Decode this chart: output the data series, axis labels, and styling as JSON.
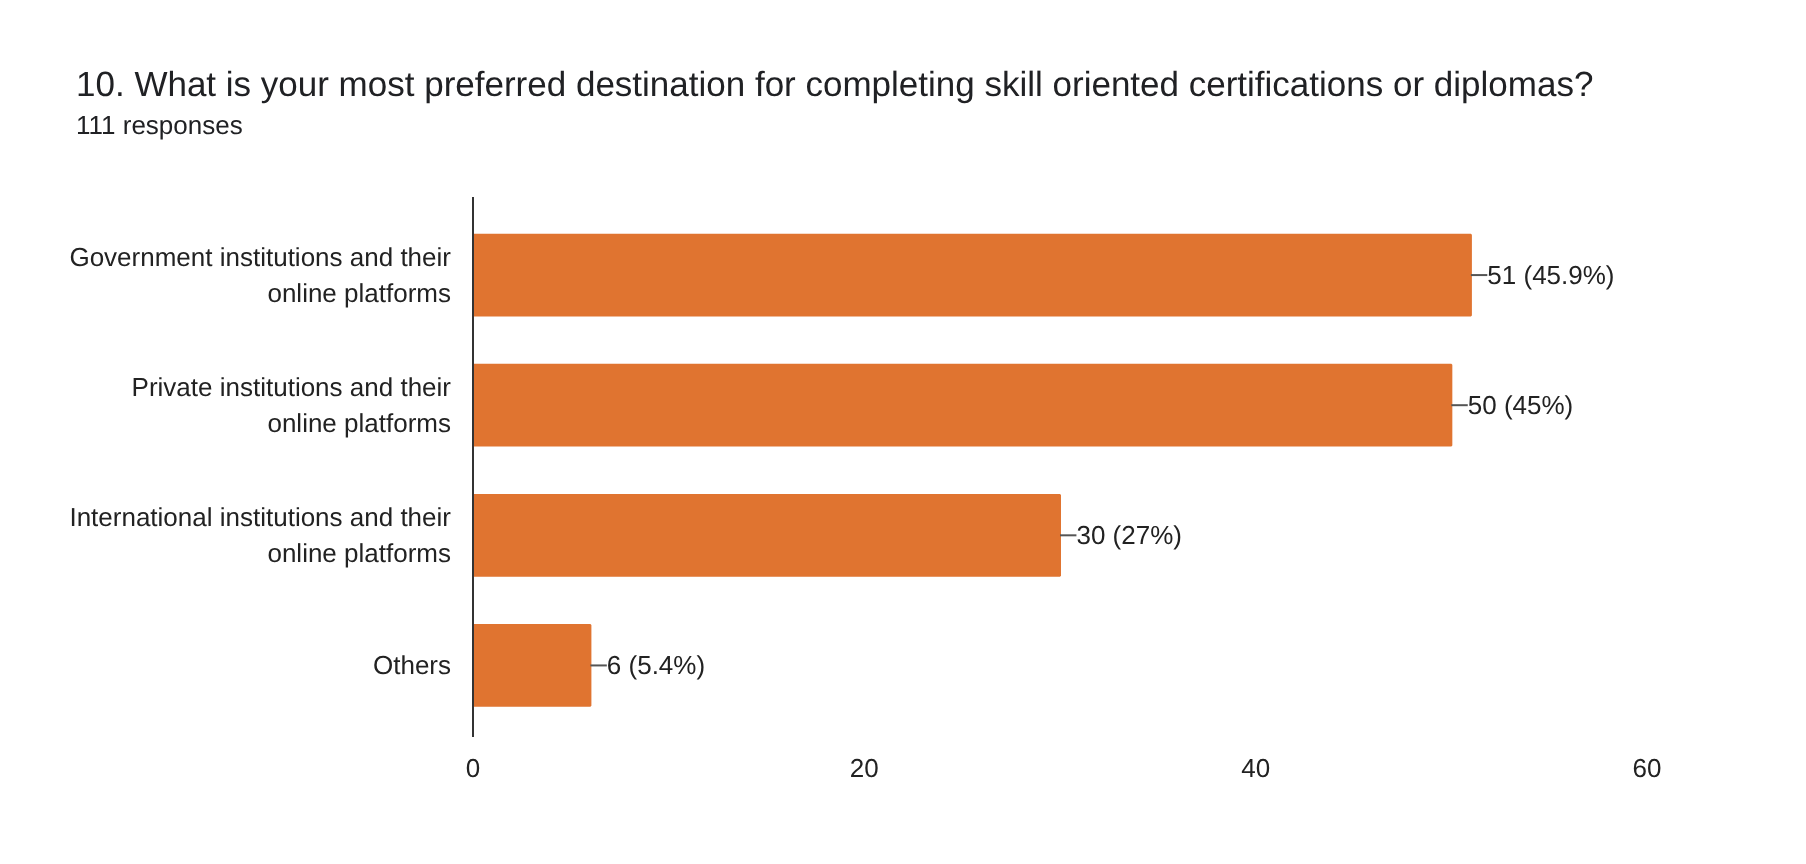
{
  "chart_data": {
    "type": "bar",
    "orientation": "horizontal",
    "title": "10. What is your most preferred destination for completing skill oriented certifications or diplomas?",
    "subtitle": "111 responses",
    "categories": [
      "Government institutions and their online platforms",
      "Private institutions and their online platforms",
      "International institutions and their online platforms",
      "Others"
    ],
    "values": [
      51,
      50,
      30,
      6
    ],
    "value_labels": [
      "51 (45.9%)",
      "50 (45%)",
      "30 (27%)",
      "6 (5.4%)"
    ],
    "color": "#e07430",
    "xlim": [
      0,
      60
    ],
    "xticks": [
      0,
      20,
      40,
      60
    ],
    "grid": false
  }
}
